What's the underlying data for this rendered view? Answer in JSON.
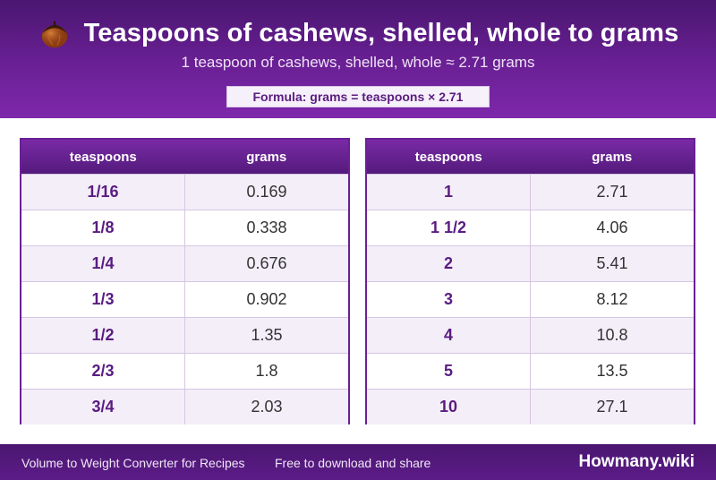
{
  "header": {
    "title": "Teaspoons of cashews, shelled, whole to grams",
    "subtitle": "1 teaspoon of cashews, shelled, whole ≈ 2.71 grams",
    "formula": "Formula: grams = teaspoons × 2.71",
    "logo_icon": "chestnut-icon"
  },
  "table_left": {
    "col_teaspoons": "teaspoons",
    "col_grams": "grams",
    "rows": [
      {
        "tsp": "1/16",
        "g": "0.169"
      },
      {
        "tsp": "1/8",
        "g": "0.338"
      },
      {
        "tsp": "1/4",
        "g": "0.676"
      },
      {
        "tsp": "1/3",
        "g": "0.902"
      },
      {
        "tsp": "1/2",
        "g": "1.35"
      },
      {
        "tsp": "2/3",
        "g": "1.8"
      },
      {
        "tsp": "3/4",
        "g": "2.03"
      }
    ]
  },
  "table_right": {
    "col_teaspoons": "teaspoons",
    "col_grams": "grams",
    "rows": [
      {
        "tsp": "1",
        "g": "2.71"
      },
      {
        "tsp": "1 1/2",
        "g": "4.06"
      },
      {
        "tsp": "2",
        "g": "5.41"
      },
      {
        "tsp": "3",
        "g": "8.12"
      },
      {
        "tsp": "4",
        "g": "10.8"
      },
      {
        "tsp": "5",
        "g": "13.5"
      },
      {
        "tsp": "10",
        "g": "27.1"
      }
    ]
  },
  "footer": {
    "left_text": "Volume to Weight Converter for Recipes",
    "mid_text": "Free to download and share",
    "brand": "Howmany.wiki"
  },
  "colors": {
    "accent": "#6a2095",
    "header_dark": "#4a1670",
    "row_alt": "#f3eef8"
  }
}
